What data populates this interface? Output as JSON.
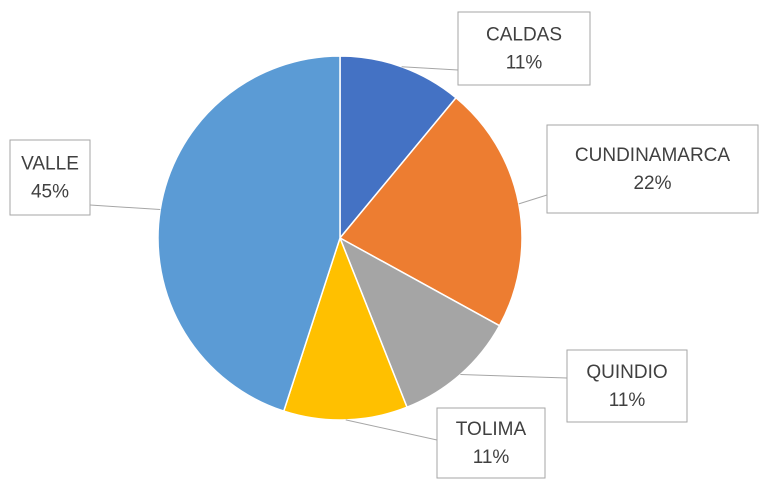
{
  "chart_data": {
    "type": "pie",
    "categories": [
      "CALDAS",
      "CUNDINAMARCA",
      "QUINDIO",
      "TOLIMA",
      "VALLE"
    ],
    "values": [
      11,
      22,
      11,
      11,
      45
    ],
    "value_labels": [
      "11%",
      "22%",
      "11%",
      "11%",
      "45%"
    ],
    "colors": [
      "#4472c4",
      "#ed7d31",
      "#a5a5a5",
      "#ffc000",
      "#5b9bd5"
    ]
  }
}
